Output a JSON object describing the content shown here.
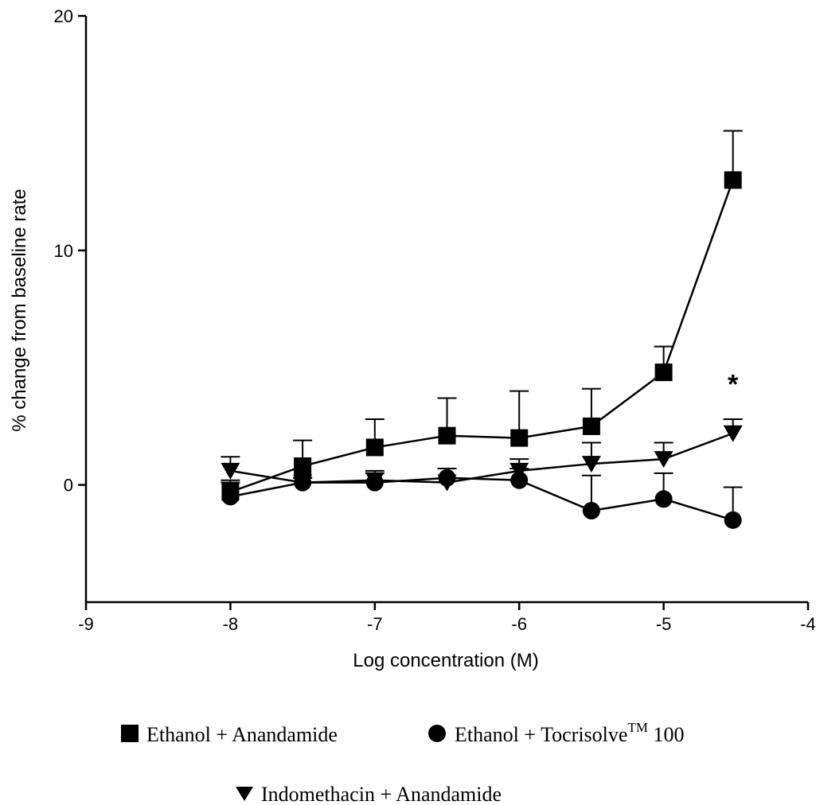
{
  "chart_data": {
    "type": "line",
    "xlabel": "Log concentration (M)",
    "ylabel": "% change from baseline rate",
    "xlim": [
      -9,
      -4
    ],
    "ylim": [
      -5,
      20
    ],
    "x_ticks": [
      "-9",
      "-8",
      "-7",
      "-6",
      "-5",
      "-4"
    ],
    "y_ticks": [
      "0",
      "10",
      "20"
    ],
    "legend_position": "bottom",
    "series": [
      {
        "name": "Ethanol + Anandamide",
        "marker": "square",
        "x": [
          -8,
          -7.5,
          -7,
          -6.5,
          -6,
          -5.5,
          -5,
          -4.52
        ],
        "y": [
          -0.3,
          0.8,
          1.6,
          2.1,
          2.0,
          2.5,
          4.8,
          13.0
        ],
        "error_plus": [
          0.5,
          1.1,
          1.2,
          1.6,
          2.0,
          1.6,
          1.1,
          2.1
        ]
      },
      {
        "name": "Ethanol + Tocrisolve",
        "name_superscript": "TM",
        "name_suffix": " 100",
        "marker": "circle",
        "x": [
          -8,
          -7.5,
          -7,
          -6.5,
          -6,
          -5.5,
          -5,
          -4.52
        ],
        "y": [
          -0.5,
          0.1,
          0.1,
          0.3,
          0.2,
          -1.1,
          -0.6,
          -1.5
        ],
        "error_plus": [
          0.6,
          0.2,
          0.4,
          0.4,
          0.5,
          1.5,
          1.1,
          1.4
        ]
      },
      {
        "name": "Indomethacin + Anandamide",
        "marker": "triangle-down",
        "x": [
          -8,
          -7.5,
          -7,
          -6.5,
          -6,
          -5.5,
          -5,
          -4.52
        ],
        "y": [
          0.6,
          0.1,
          0.2,
          0.1,
          0.6,
          0.9,
          1.1,
          2.2
        ],
        "error_plus": [
          0.6,
          0.2,
          0.4,
          0.6,
          0.5,
          0.9,
          0.7,
          0.6
        ]
      }
    ],
    "annotations": [
      {
        "text": "*",
        "x": -4.52,
        "y": 3.9
      }
    ]
  }
}
